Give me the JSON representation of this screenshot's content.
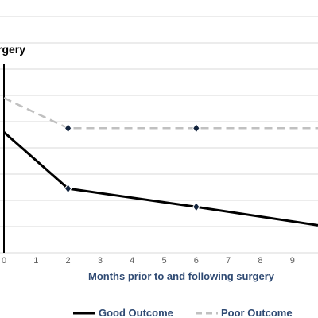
{
  "chart_data": {
    "type": "line",
    "annotation": "rgery",
    "xlabel": "Months prior to and following surgery",
    "ylabel": "",
    "x_ticks": [
      "0",
      "1",
      "2",
      "3",
      "4",
      "5",
      "6",
      "7",
      "8",
      "9"
    ],
    "xlim": [
      0,
      9.8
    ],
    "ylim": [
      0,
      10
    ],
    "grid": "horizontal",
    "legend_position": "bottom",
    "surgery_line_x": 0,
    "series": [
      {
        "name": "Good Outcome",
        "style": "solid",
        "color": "#000000",
        "x": [
          0,
          2,
          6,
          9.8
        ],
        "y": [
          4.6,
          2.45,
          1.75,
          1.05
        ]
      },
      {
        "name": "Poor Outcome",
        "style": "dashed",
        "color": "#c0c0c0",
        "x": [
          0,
          2,
          6,
          9.8
        ],
        "y": [
          5.9,
          4.75,
          4.75,
          4.75
        ]
      }
    ],
    "markers": [
      {
        "x": 2,
        "y": 4.75
      },
      {
        "x": 6,
        "y": 4.75
      },
      {
        "x": 2,
        "y": 2.45
      },
      {
        "x": 6,
        "y": 1.75
      }
    ],
    "marker_color": "#13243d"
  }
}
